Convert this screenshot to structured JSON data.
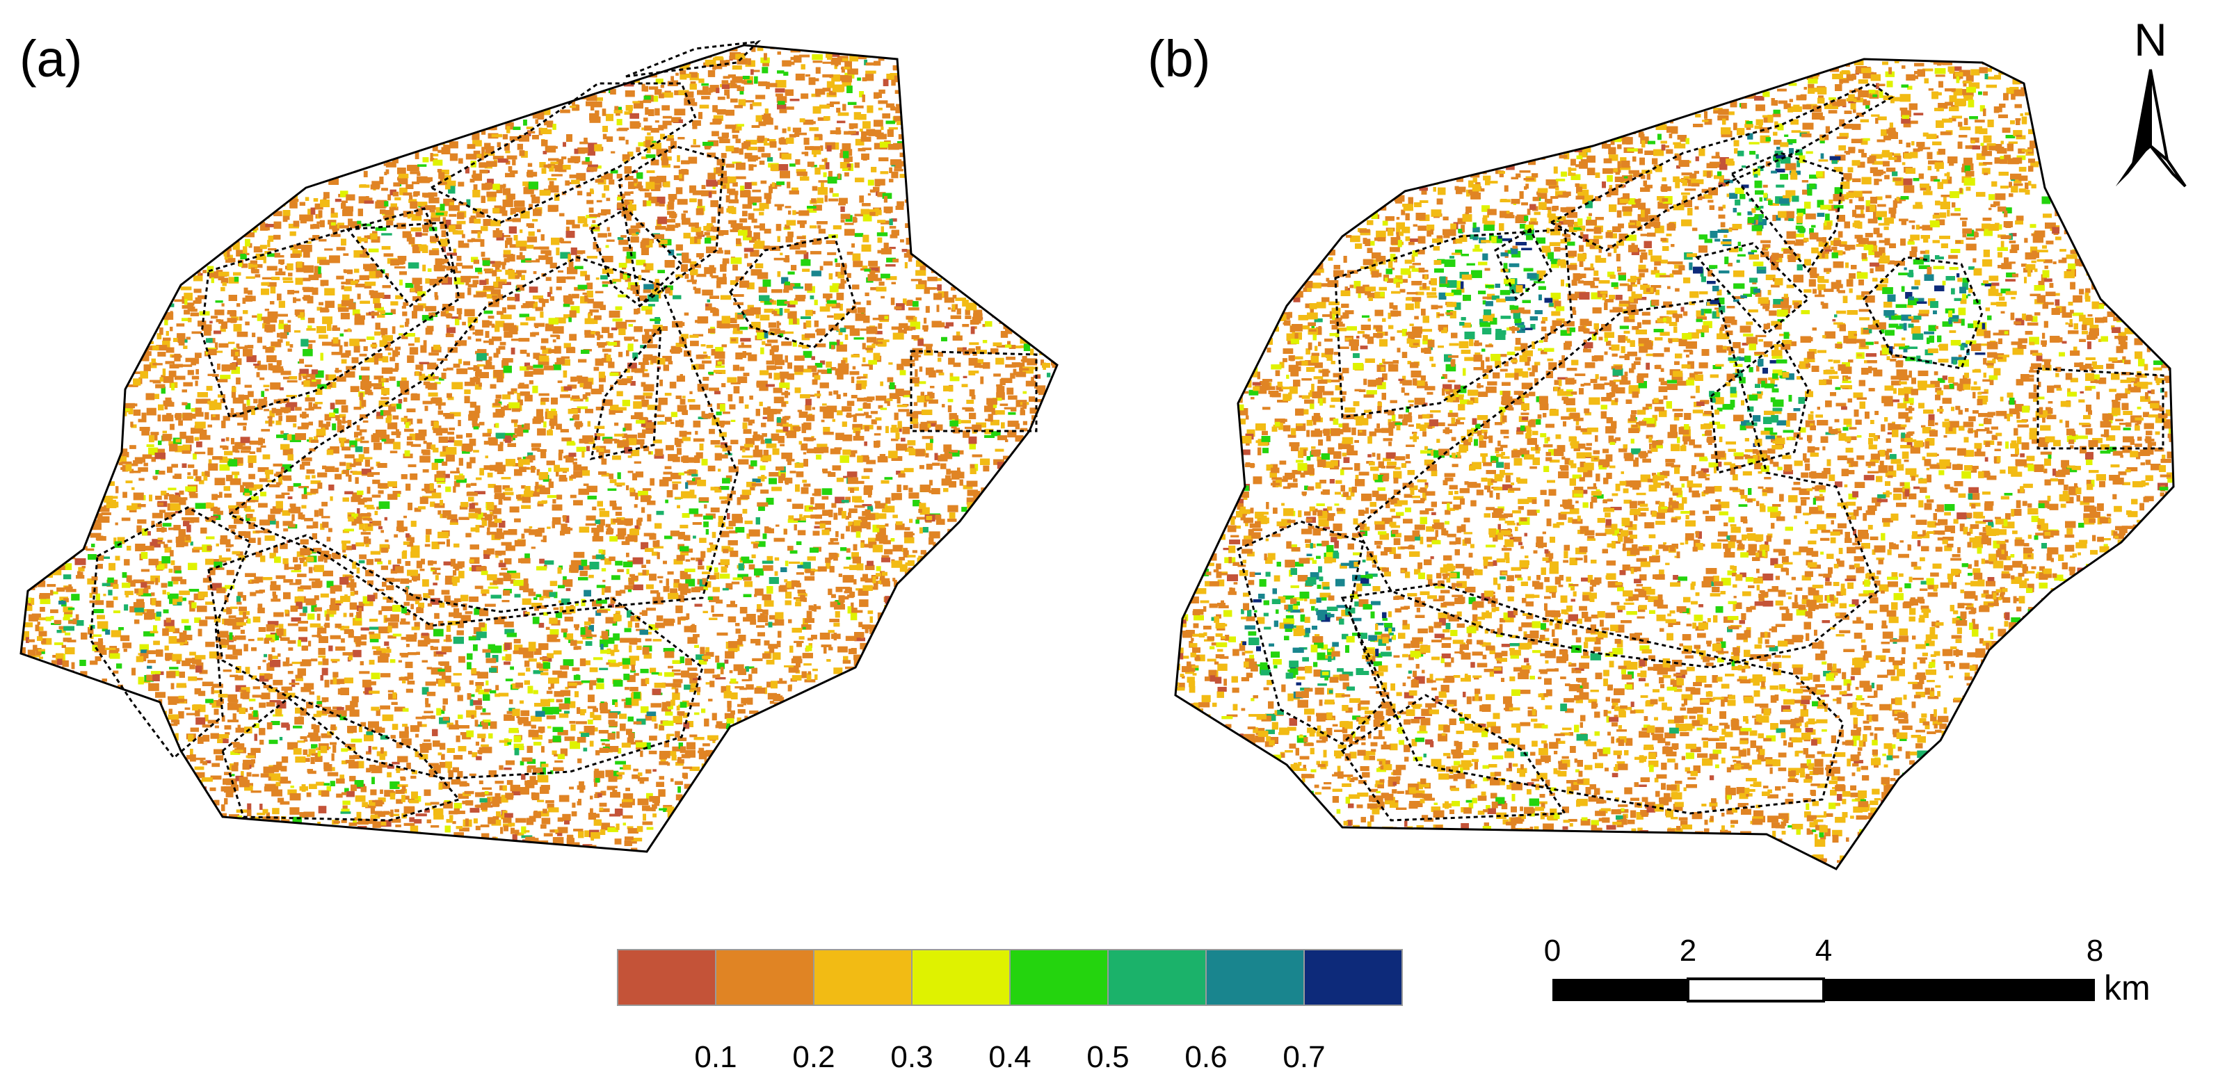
{
  "panels": [
    {
      "label": "(a)"
    },
    {
      "label": "(b)"
    }
  ],
  "north_arrow": {
    "label": "N"
  },
  "colorbar": {
    "colors": [
      "#c45338",
      "#e08424",
      "#f2bb14",
      "#dff200",
      "#24d40e",
      "#1bb26a",
      "#19858e",
      "#0d2a7a"
    ],
    "tick_labels": [
      "0.1",
      "0.2",
      "0.3",
      "0.4",
      "0.5",
      "0.6",
      "0.7"
    ]
  },
  "scale_bar": {
    "tick_labels": [
      "0",
      "2",
      "4",
      "8"
    ],
    "unit": "km"
  }
}
